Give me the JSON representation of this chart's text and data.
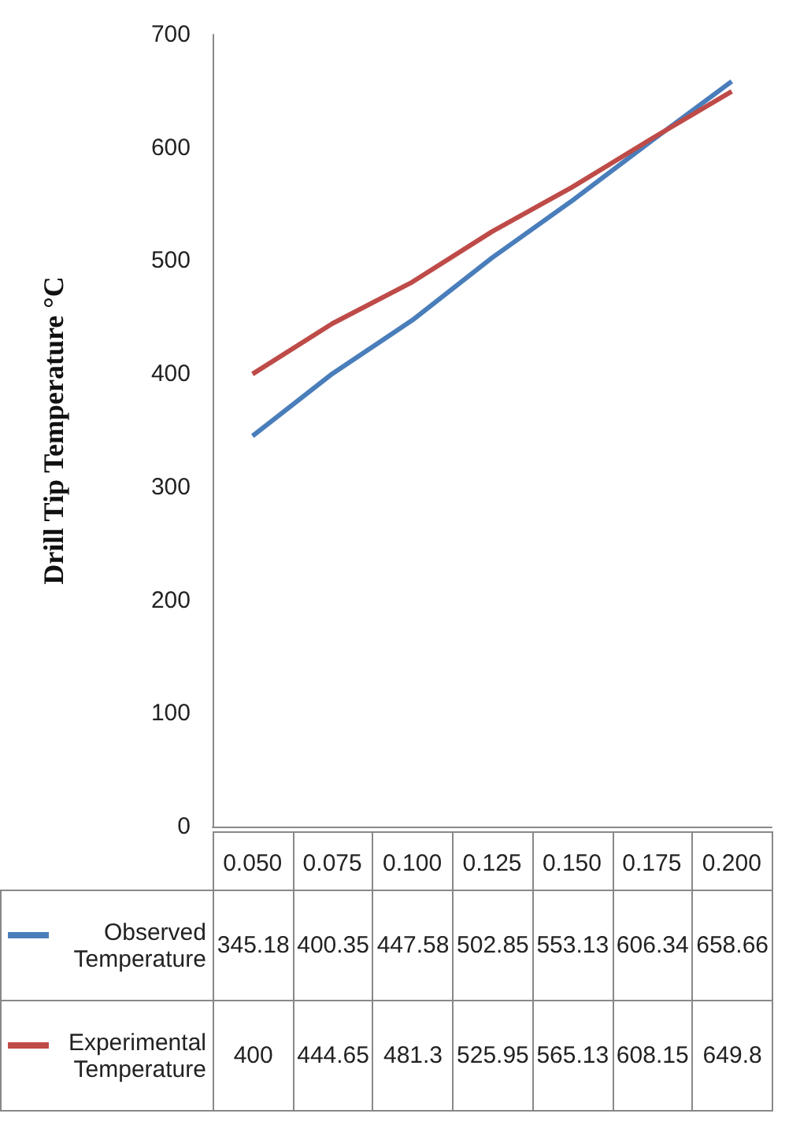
{
  "chart_data": {
    "type": "line",
    "ylabel": "Drill Tip Temperature °C",
    "categories": [
      "0.050",
      "0.075",
      "0.100",
      "0.125",
      "0.150",
      "0.175",
      "0.200"
    ],
    "series": [
      {
        "name": "Observed Temperature",
        "color": "#4a7ebb",
        "values": [
          345.18,
          400.35,
          447.58,
          502.85,
          553.13,
          606.34,
          658.66
        ]
      },
      {
        "name": "Experimental Temperature",
        "color": "#be4b48",
        "values": [
          400,
          444.65,
          481.3,
          525.95,
          565.13,
          608.15,
          649.8
        ]
      }
    ],
    "ylim": [
      0,
      700
    ],
    "yticks": [
      0,
      100,
      200,
      300,
      400,
      500,
      600,
      700
    ],
    "grid": false,
    "legend": "bottom",
    "data_labels": true,
    "marker": "none"
  }
}
